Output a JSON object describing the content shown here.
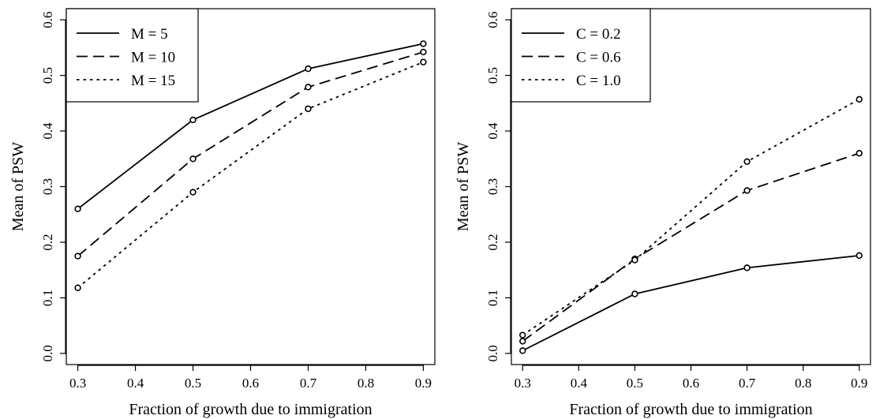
{
  "chart_data": [
    {
      "type": "line",
      "title": "",
      "xlabel": "Fraction of growth due to immigration",
      "ylabel": "Mean of PSW",
      "xlim": [
        0.28,
        0.92
      ],
      "ylim": [
        -0.02,
        0.62
      ],
      "xticks": [
        "0.3",
        "0.4",
        "0.5",
        "0.6",
        "0.7",
        "0.8",
        "0.9"
      ],
      "yticks": [
        "0.0",
        "0.1",
        "0.2",
        "0.3",
        "0.4",
        "0.5",
        "0.6"
      ],
      "grid": false,
      "legend_position": "top-left",
      "x": [
        0.3,
        0.5,
        0.7,
        0.9
      ],
      "series": [
        {
          "name": "M = 5",
          "style": "solid",
          "values": [
            0.26,
            0.42,
            0.512,
            0.557
          ]
        },
        {
          "name": "M = 10",
          "style": "dashed",
          "values": [
            0.175,
            0.35,
            0.479,
            0.542
          ]
        },
        {
          "name": "M = 15",
          "style": "dotted",
          "values": [
            0.118,
            0.29,
            0.44,
            0.524
          ]
        }
      ]
    },
    {
      "type": "line",
      "title": "",
      "xlabel": "Fraction of growth due to immigration",
      "ylabel": "Mean of PSW",
      "xlim": [
        0.28,
        0.92
      ],
      "ylim": [
        -0.02,
        0.62
      ],
      "xticks": [
        "0.3",
        "0.4",
        "0.5",
        "0.6",
        "0.7",
        "0.8",
        "0.9"
      ],
      "yticks": [
        "0.0",
        "0.1",
        "0.2",
        "0.3",
        "0.4",
        "0.5",
        "0.6"
      ],
      "grid": false,
      "legend_position": "top-left",
      "x": [
        0.3,
        0.5,
        0.7,
        0.9
      ],
      "series": [
        {
          "name": "C = 0.2",
          "style": "solid",
          "values": [
            0.005,
            0.107,
            0.154,
            0.176
          ]
        },
        {
          "name": "C = 0.6",
          "style": "dashed",
          "values": [
            0.022,
            0.17,
            0.293,
            0.36
          ]
        },
        {
          "name": "C = 1.0",
          "style": "dotted",
          "values": [
            0.033,
            0.168,
            0.345,
            0.457
          ]
        }
      ]
    }
  ]
}
